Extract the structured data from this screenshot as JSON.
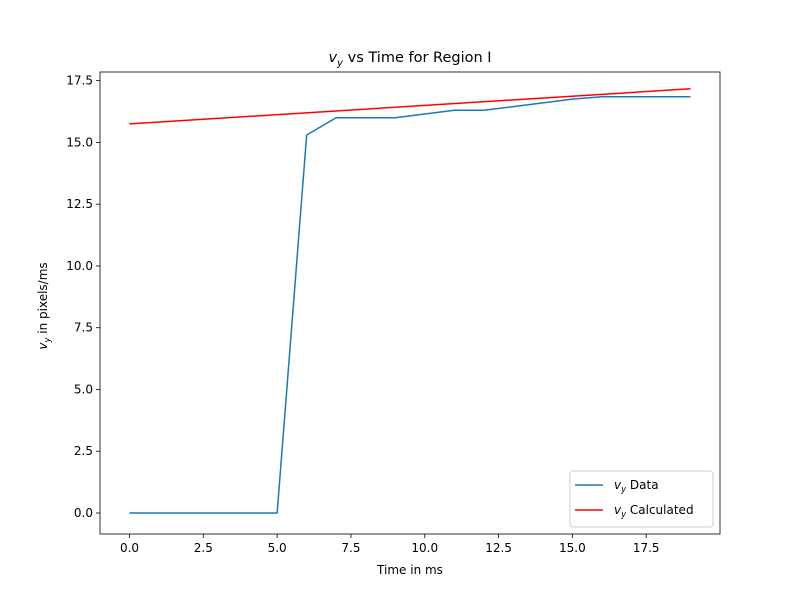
{
  "chart_data": {
    "type": "line",
    "title": {
      "var": "v",
      "sub": "y",
      "rest": " vs Time for Region I"
    },
    "xlabel": "Time in ms",
    "ylabel": {
      "var": "v",
      "sub": "y",
      "rest": " in pixels/ms"
    },
    "xlim": [
      -1.0,
      20.0
    ],
    "ylim": [
      -0.85,
      17.85
    ],
    "xticks": [
      0.0,
      2.5,
      5.0,
      7.5,
      10.0,
      12.5,
      15.0,
      17.5
    ],
    "xtick_labels": [
      "0.0",
      "2.5",
      "5.0",
      "7.5",
      "10.0",
      "12.5",
      "15.0",
      "17.5"
    ],
    "yticks": [
      0.0,
      2.5,
      5.0,
      7.5,
      10.0,
      12.5,
      15.0,
      17.5
    ],
    "ytick_labels": [
      "0.0",
      "2.5",
      "5.0",
      "7.5",
      "10.0",
      "12.5",
      "15.0",
      "17.5"
    ],
    "grid": false,
    "legend_position": "lower right",
    "series": [
      {
        "name": {
          "var": "v",
          "sub": "y",
          "rest": " Data"
        },
        "color": "#1f77b4",
        "x": [
          0,
          1,
          2,
          3,
          4,
          5,
          6,
          7,
          8,
          9,
          10,
          11,
          12,
          13,
          14,
          15,
          16,
          17,
          18,
          19
        ],
        "y": [
          0,
          0,
          0,
          0,
          0,
          0,
          15.3,
          16.0,
          16.0,
          16.0,
          16.15,
          16.3,
          16.3,
          16.45,
          16.6,
          16.75,
          16.85,
          16.85,
          16.85,
          16.85
        ]
      },
      {
        "name": {
          "var": "v",
          "sub": "y",
          "rest": " Calculated"
        },
        "color": "#ff0000",
        "x": [
          0,
          19
        ],
        "y": [
          15.75,
          17.17
        ]
      }
    ]
  }
}
